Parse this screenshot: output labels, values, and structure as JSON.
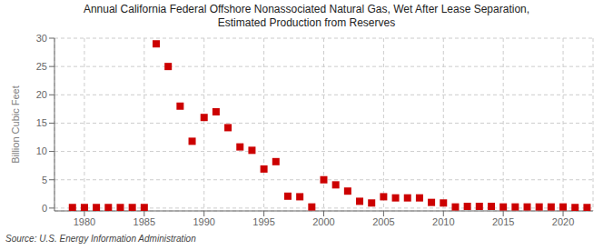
{
  "chart_data": {
    "type": "scatter",
    "title": "Annual California Federal Offshore Nonassociated Natural Gas, Wet After Lease Separation,\nEstimated Production from Reserves",
    "y_label": "Billion Cubic Feet",
    "annotations": [
      "Source: U.S. Energy Information Administration"
    ],
    "x": [
      1979,
      1980,
      1981,
      1982,
      1983,
      1984,
      1985,
      1986,
      1987,
      1988,
      1989,
      1990,
      1991,
      1992,
      1993,
      1994,
      1995,
      1996,
      1997,
      1998,
      1999,
      2000,
      2001,
      2002,
      2003,
      2004,
      2005,
      2006,
      2007,
      2008,
      2009,
      2010,
      2011,
      2012,
      2013,
      2014,
      2015,
      2016,
      2017,
      2018,
      2019,
      2020,
      2021,
      2022
    ],
    "values": [
      0.1,
      0.1,
      0.1,
      0.1,
      0.1,
      0.1,
      0.1,
      29.0,
      25.0,
      18.0,
      11.8,
      16.0,
      17.0,
      14.2,
      10.8,
      10.2,
      6.9,
      8.2,
      2.1,
      2.0,
      0.2,
      5.0,
      4.1,
      3.0,
      1.2,
      0.9,
      2.0,
      1.8,
      1.8,
      1.8,
      1.0,
      0.9,
      0.2,
      0.3,
      0.3,
      0.3,
      0.2,
      0.2,
      0.2,
      0.2,
      0.2,
      0.2,
      0.1,
      0.1
    ],
    "color": "#cc0000",
    "marker": "square",
    "xlim": [
      1977.5,
      2022.5
    ],
    "ylim": [
      -0.5,
      30
    ],
    "xticks": [
      1980,
      1985,
      1990,
      1995,
      2000,
      2005,
      2010,
      2015,
      2020
    ],
    "yticks": [
      0,
      5,
      10,
      15,
      20,
      25,
      30
    ],
    "grid": true
  }
}
